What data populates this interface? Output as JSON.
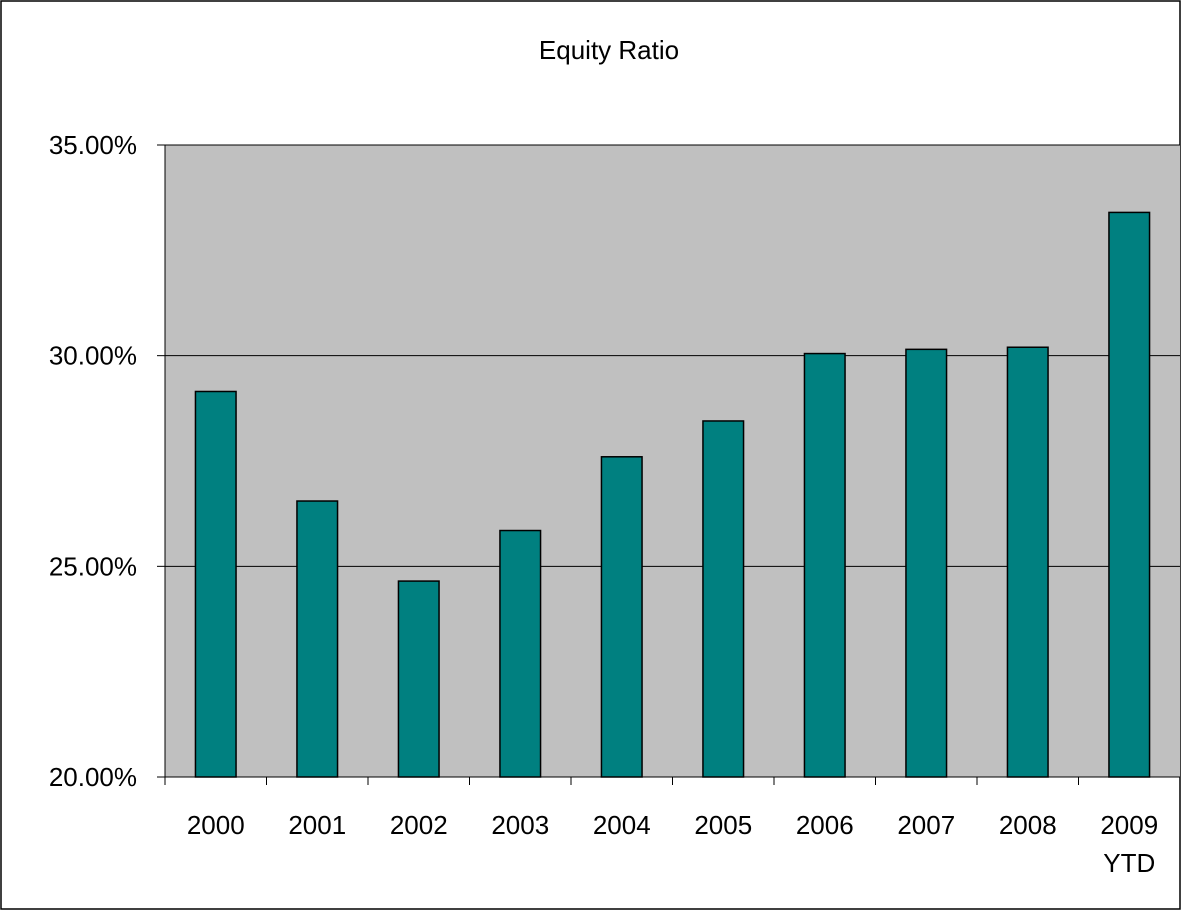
{
  "chart_data": {
    "type": "bar",
    "title": "Equity Ratio",
    "categories": [
      "2000",
      "2001",
      "2002",
      "2003",
      "2004",
      "2005",
      "2006",
      "2007",
      "2008",
      "2009 YTD"
    ],
    "category_lines": [
      [
        "2000"
      ],
      [
        "2001"
      ],
      [
        "2002"
      ],
      [
        "2003"
      ],
      [
        "2004"
      ],
      [
        "2005"
      ],
      [
        "2006"
      ],
      [
        "2007"
      ],
      [
        "2008"
      ],
      [
        "2009",
        "YTD"
      ]
    ],
    "values": [
      29.15,
      26.55,
      24.65,
      25.85,
      27.6,
      28.45,
      30.05,
      30.15,
      30.2,
      33.4
    ],
    "ylim": [
      20,
      35
    ],
    "yticks": [
      20,
      25,
      30,
      35
    ],
    "ytick_labels": [
      "20.00%",
      "25.00%",
      "30.00%",
      "35.00%"
    ],
    "xlabel": "",
    "ylabel": "",
    "grid": true,
    "legend": "none",
    "colors": {
      "bar_fill": "#008080",
      "bar_stroke": "#000000",
      "plot_background": "#C0C0C0",
      "gridline": "#000000",
      "page_background": "#FFFFFF"
    }
  }
}
